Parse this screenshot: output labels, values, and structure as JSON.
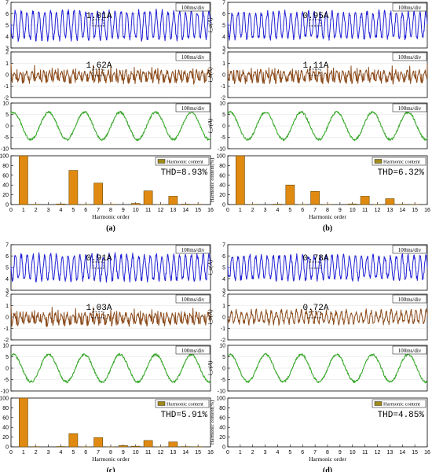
{
  "figure": {
    "panels": [
      {
        "label": "(a)",
        "plots": [
          {
            "ylabel": "i_a(A)",
            "yticks": [
              "3",
              "4",
              "5",
              "6",
              "7"
            ],
            "timebase": "100ms/div",
            "annotation": "1.01A",
            "trace_color": "#1f1fd6"
          },
          {
            "ylabel": "i_b(A)",
            "yticks": [
              "-2",
              "-1",
              "0",
              "1",
              "2"
            ],
            "timebase": "100ms/div",
            "annotation": "1.62A",
            "trace_color": "#8b4a1a"
          },
          {
            "ylabel": "i_c(A)",
            "yticks": [
              "-10",
              "-5",
              "0",
              "5",
              "10"
            ],
            "timebase": "100ms/div",
            "annotation": "",
            "trace_color": "#3aa82c"
          }
        ],
        "harmonic": {
          "legend": "Harmonic content",
          "thd": "THD=8.93%",
          "ylabel": "Harmonic content(%)",
          "xlabel": "Harmonic order"
        }
      },
      {
        "label": "(b)",
        "plots": [
          {
            "ylabel": "i_a(A)",
            "yticks": [
              "3",
              "4",
              "5",
              "6",
              "7"
            ],
            "timebase": "100ms/div",
            "annotation": "0.95A",
            "trace_color": "#1f1fd6"
          },
          {
            "ylabel": "i_b(A)",
            "yticks": [
              "-2",
              "-1",
              "0",
              "1",
              "2"
            ],
            "timebase": "100ms/div",
            "annotation": "1.11A",
            "trace_color": "#8b4a1a"
          },
          {
            "ylabel": "i_c(A)",
            "yticks": [
              "-10",
              "-5",
              "0",
              "5",
              "10"
            ],
            "timebase": "100ms/div",
            "annotation": "",
            "trace_color": "#3aa82c"
          }
        ],
        "harmonic": {
          "legend": "Harmonic content",
          "thd": "THD=6.32%",
          "ylabel": "Harmonic content(%)",
          "xlabel": "Harmonic order"
        }
      },
      {
        "label": "(c)",
        "plots": [
          {
            "ylabel": "i_a(A)",
            "yticks": [
              "3",
              "4",
              "5",
              "6",
              "7"
            ],
            "timebase": "100ms/div",
            "annotation": "0.91A",
            "trace_color": "#1f1fd6"
          },
          {
            "ylabel": "i_b(A)",
            "yticks": [
              "-2",
              "-1",
              "0",
              "1",
              "2"
            ],
            "timebase": "100ms/div",
            "annotation": "1.03A",
            "trace_color": "#8b4a1a"
          },
          {
            "ylabel": "i_c(A)",
            "yticks": [
              "-10",
              "-5",
              "0",
              "5",
              "10"
            ],
            "timebase": "100ms/div",
            "annotation": "",
            "trace_color": "#3aa82c"
          }
        ],
        "harmonic": {
          "legend": "Harmonic content",
          "thd": "THD=5.91%",
          "ylabel": "Harmonic content(%)",
          "xlabel": "Harmonic order"
        }
      },
      {
        "label": "(d)",
        "plots": [
          {
            "ylabel": "i_a(A)",
            "yticks": [
              "3",
              "4",
              "5",
              "6",
              "7"
            ],
            "timebase": "100ms/div",
            "annotation": "0.78A",
            "trace_color": "#1f1fd6"
          },
          {
            "ylabel": "i_b(A)",
            "yticks": [
              "-2",
              "-1",
              "0",
              "1",
              "2"
            ],
            "timebase": "100ms/div",
            "annotation": "0.72A",
            "trace_color": "#8b4a1a"
          },
          {
            "ylabel": "i_c(A)",
            "yticks": [
              "-10",
              "-5",
              "0",
              "5",
              "10"
            ],
            "timebase": "100ms/div",
            "annotation": "",
            "trace_color": "#3aa82c"
          }
        ],
        "harmonic": {
          "legend": "Harmonic content",
          "thd": "THD=4.85%",
          "ylabel": "Harmonic content(%)",
          "xlabel": "Harmonic order"
        }
      }
    ],
    "bar_fill": "#e08a12",
    "bar_stroke": "#6b4a00"
  },
  "chart_data": [
    {
      "type": "bar",
      "panel": "(a)",
      "categories": [
        0,
        1,
        2,
        3,
        4,
        5,
        6,
        7,
        8,
        9,
        10,
        11,
        12,
        13,
        14,
        15,
        16
      ],
      "values": [
        0,
        100,
        0.5,
        0,
        1.2,
        70,
        0.3,
        44,
        0.5,
        0,
        2.2,
        28,
        0.3,
        17,
        0.8,
        0.5,
        0
      ],
      "xlim": [
        0,
        16
      ],
      "ylim": [
        0,
        100
      ],
      "yticks": [
        0,
        20,
        40,
        60,
        80,
        100
      ],
      "legend": "Harmonic content",
      "legend_position": "top-right"
    },
    {
      "type": "bar",
      "panel": "(b)",
      "categories": [
        0,
        1,
        2,
        3,
        4,
        5,
        6,
        7,
        8,
        9,
        10,
        11,
        12,
        13,
        14,
        15,
        16
      ],
      "values": [
        0,
        100,
        0.4,
        0,
        0.8,
        40,
        0.3,
        27,
        0.3,
        0,
        1.2,
        17,
        0.3,
        12,
        0.5,
        0.3,
        0
      ],
      "xlim": [
        0,
        16
      ],
      "ylim": [
        0,
        100
      ],
      "yticks": [
        0,
        20,
        40,
        60,
        80,
        100
      ],
      "legend": "Harmonic content",
      "legend_position": "top-right"
    },
    {
      "type": "bar",
      "panel": "(c)",
      "categories": [
        0,
        1,
        2,
        3,
        4,
        5,
        6,
        7,
        8,
        9,
        10,
        11,
        12,
        13,
        14,
        15,
        16
      ],
      "values": [
        0,
        100,
        0.5,
        0,
        0.7,
        27,
        0.3,
        19,
        0.3,
        2.5,
        1.4,
        13,
        0.3,
        10,
        0.6,
        0.4,
        0
      ],
      "xlim": [
        0,
        16
      ],
      "ylim": [
        0,
        100
      ],
      "yticks": [
        0,
        20,
        40,
        60,
        80,
        100
      ],
      "legend": "Harmonic content",
      "legend_position": "top-right"
    },
    {
      "type": "bar",
      "panel": "(d)",
      "categories": [
        0,
        1,
        2,
        3,
        4,
        5,
        6,
        7,
        8,
        9,
        10,
        11,
        12,
        13,
        14,
        15,
        16
      ],
      "values": [
        0,
        0,
        0,
        0,
        0,
        0,
        0,
        0,
        0,
        0,
        0,
        0,
        0,
        0,
        0,
        0,
        0
      ],
      "xlim": [
        0,
        16
      ],
      "ylim": [
        0,
        100
      ],
      "yticks": [
        0,
        20,
        40,
        60,
        80,
        100
      ],
      "legend": "Harmonic content",
      "legend_position": "top-right"
    }
  ]
}
